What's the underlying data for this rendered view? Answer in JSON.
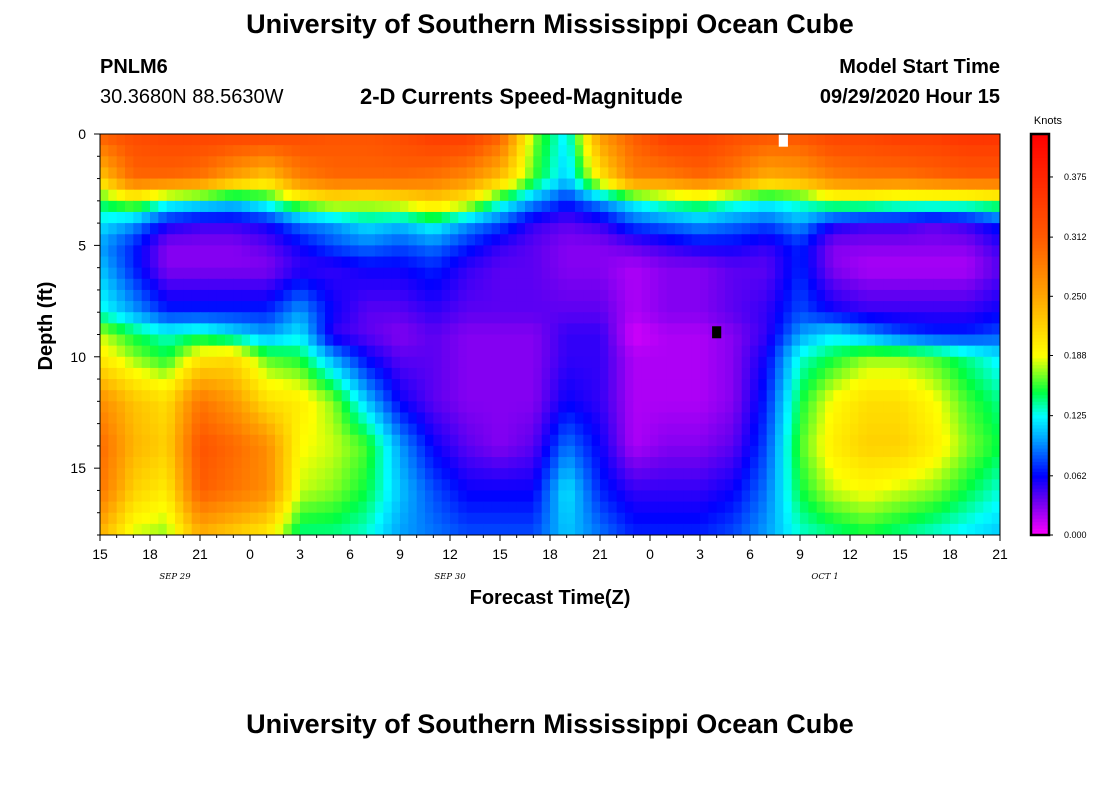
{
  "page": {
    "title_top": "University of Southern Mississippi Ocean Cube",
    "title_bottom": "University of Southern Mississippi Ocean Cube",
    "station": "PNLM6",
    "coords": "30.3680N 88.5630W",
    "subtitle": "2-D Currents Speed-Magnitude",
    "model_start_label": "Model Start Time",
    "model_start_value": "09/29/2020 Hour 15"
  },
  "chart_data": {
    "type": "heatmap",
    "title": "2-D Currents Speed-Magnitude",
    "xlabel": "Forecast Time(Z)",
    "ylabel": "Depth (ft)",
    "x_hours_range": [
      0,
      54
    ],
    "x_tick_hours": [
      0,
      3,
      6,
      9,
      12,
      15,
      18,
      21,
      24,
      27,
      30,
      33,
      36,
      39,
      42,
      45,
      48,
      51,
      54
    ],
    "x_tick_labels": [
      "15",
      "18",
      "21",
      "0",
      "3",
      "6",
      "9",
      "12",
      "15",
      "18",
      "21",
      "0",
      "3",
      "6",
      "9",
      "12",
      "15",
      "18",
      "21"
    ],
    "date_labels": [
      {
        "text": "SEP 29",
        "hour": 4.5
      },
      {
        "text": "SEP 30",
        "hour": 21
      },
      {
        "text": "OCT 1",
        "hour": 43.5
      }
    ],
    "y_range_ft": [
      0,
      18
    ],
    "y_ticks": [
      0,
      5,
      10,
      15
    ],
    "colorbar": {
      "unit": "Knots",
      "min": 0,
      "max": 0.42,
      "tick_values": [
        0.0,
        0.062,
        0.125,
        0.188,
        0.25,
        0.312,
        0.375
      ],
      "tick_labels": [
        "0.000",
        "0.062",
        "0.125",
        "0.188",
        "0.250",
        "0.312",
        "0.375"
      ]
    },
    "grid": {
      "times_h": [
        0,
        2,
        4,
        6,
        8,
        10,
        12,
        14,
        16,
        18,
        20,
        22,
        24,
        26,
        28,
        30,
        32,
        34,
        36,
        38,
        40,
        42,
        44,
        46,
        48,
        50,
        52,
        54
      ],
      "depths_ft": [
        0,
        2,
        3,
        4,
        5,
        6,
        8,
        9,
        10,
        12,
        14,
        16,
        18
      ],
      "speed_knots": [
        [
          0.31,
          0.33,
          0.34,
          0.34,
          0.34,
          0.34,
          0.33,
          0.32,
          0.32,
          0.33,
          0.35,
          0.35,
          0.31,
          0.17,
          0.12,
          0.26,
          0.31,
          0.35,
          0.35,
          0.33,
          0.32,
          0.32,
          0.34,
          0.34,
          0.35,
          0.35,
          0.36,
          0.36
        ],
        [
          0.22,
          0.3,
          0.3,
          0.29,
          0.25,
          0.22,
          0.28,
          0.3,
          0.3,
          0.3,
          0.29,
          0.27,
          0.23,
          0.16,
          0.11,
          0.2,
          0.28,
          0.28,
          0.3,
          0.28,
          0.24,
          0.25,
          0.28,
          0.29,
          0.29,
          0.3,
          0.31,
          0.31
        ],
        [
          0.15,
          0.18,
          0.14,
          0.13,
          0.12,
          0.14,
          0.18,
          0.2,
          0.19,
          0.2,
          0.22,
          0.2,
          0.14,
          0.1,
          0.07,
          0.1,
          0.13,
          0.15,
          0.16,
          0.14,
          0.13,
          0.14,
          0.17,
          0.17,
          0.16,
          0.16,
          0.16,
          0.17
        ],
        [
          0.12,
          0.1,
          0.06,
          0.05,
          0.05,
          0.06,
          0.09,
          0.1,
          0.12,
          0.11,
          0.13,
          0.1,
          0.08,
          0.05,
          0.04,
          0.05,
          0.08,
          0.09,
          0.1,
          0.09,
          0.08,
          0.1,
          0.06,
          0.05,
          0.05,
          0.04,
          0.05,
          0.07
        ],
        [
          0.1,
          0.07,
          0.03,
          0.03,
          0.03,
          0.04,
          0.06,
          0.08,
          0.09,
          0.08,
          0.09,
          0.07,
          0.05,
          0.04,
          0.03,
          0.03,
          0.04,
          0.05,
          0.06,
          0.06,
          0.05,
          0.07,
          0.03,
          0.03,
          0.03,
          0.03,
          0.03,
          0.05
        ],
        [
          0.11,
          0.07,
          0.03,
          0.03,
          0.03,
          0.03,
          0.05,
          0.05,
          0.06,
          0.06,
          0.07,
          0.05,
          0.04,
          0.04,
          0.03,
          0.03,
          0.02,
          0.03,
          0.03,
          0.04,
          0.04,
          0.07,
          0.03,
          0.02,
          0.02,
          0.02,
          0.02,
          0.04
        ],
        [
          0.13,
          0.1,
          0.07,
          0.07,
          0.07,
          0.07,
          0.1,
          0.06,
          0.04,
          0.04,
          0.05,
          0.04,
          0.04,
          0.04,
          0.04,
          0.04,
          0.02,
          0.03,
          0.03,
          0.04,
          0.05,
          0.08,
          0.06,
          0.05,
          0.05,
          0.05,
          0.05,
          0.06
        ],
        [
          0.18,
          0.15,
          0.13,
          0.14,
          0.12,
          0.1,
          0.12,
          0.05,
          0.04,
          0.03,
          0.04,
          0.03,
          0.03,
          0.03,
          0.05,
          0.05,
          0.01,
          0.02,
          0.02,
          0.03,
          0.05,
          0.1,
          0.12,
          0.1,
          0.08,
          0.07,
          0.07,
          0.08
        ],
        [
          0.2,
          0.17,
          0.15,
          0.2,
          0.21,
          0.16,
          0.15,
          0.1,
          0.06,
          0.04,
          0.04,
          0.03,
          0.03,
          0.03,
          0.05,
          0.05,
          0.02,
          0.02,
          0.02,
          0.03,
          0.06,
          0.13,
          0.15,
          0.17,
          0.17,
          0.16,
          0.14,
          0.12
        ],
        [
          0.27,
          0.23,
          0.21,
          0.29,
          0.26,
          0.21,
          0.2,
          0.17,
          0.11,
          0.06,
          0.04,
          0.03,
          0.03,
          0.03,
          0.06,
          0.05,
          0.02,
          0.02,
          0.02,
          0.03,
          0.07,
          0.15,
          0.19,
          0.21,
          0.21,
          0.19,
          0.16,
          0.14
        ],
        [
          0.3,
          0.24,
          0.22,
          0.32,
          0.3,
          0.27,
          0.19,
          0.18,
          0.16,
          0.1,
          0.06,
          0.04,
          0.03,
          0.04,
          0.09,
          0.06,
          0.02,
          0.03,
          0.03,
          0.04,
          0.08,
          0.16,
          0.2,
          0.22,
          0.22,
          0.2,
          0.17,
          0.15
        ],
        [
          0.29,
          0.22,
          0.2,
          0.31,
          0.29,
          0.27,
          0.18,
          0.17,
          0.15,
          0.11,
          0.08,
          0.06,
          0.06,
          0.06,
          0.12,
          0.07,
          0.05,
          0.05,
          0.05,
          0.06,
          0.09,
          0.15,
          0.18,
          0.19,
          0.18,
          0.17,
          0.15,
          0.13
        ],
        [
          0.24,
          0.18,
          0.17,
          0.24,
          0.22,
          0.2,
          0.14,
          0.14,
          0.13,
          0.1,
          0.09,
          0.08,
          0.08,
          0.08,
          0.11,
          0.09,
          0.07,
          0.07,
          0.07,
          0.08,
          0.1,
          0.13,
          0.14,
          0.15,
          0.14,
          0.13,
          0.12,
          0.11
        ]
      ]
    },
    "missing_cells": [
      {
        "hour": 41,
        "depth_ft": 0.3,
        "color": "#ffffff"
      },
      {
        "hour": 37,
        "depth_ft": 8.9,
        "color": "#000000"
      }
    ]
  }
}
